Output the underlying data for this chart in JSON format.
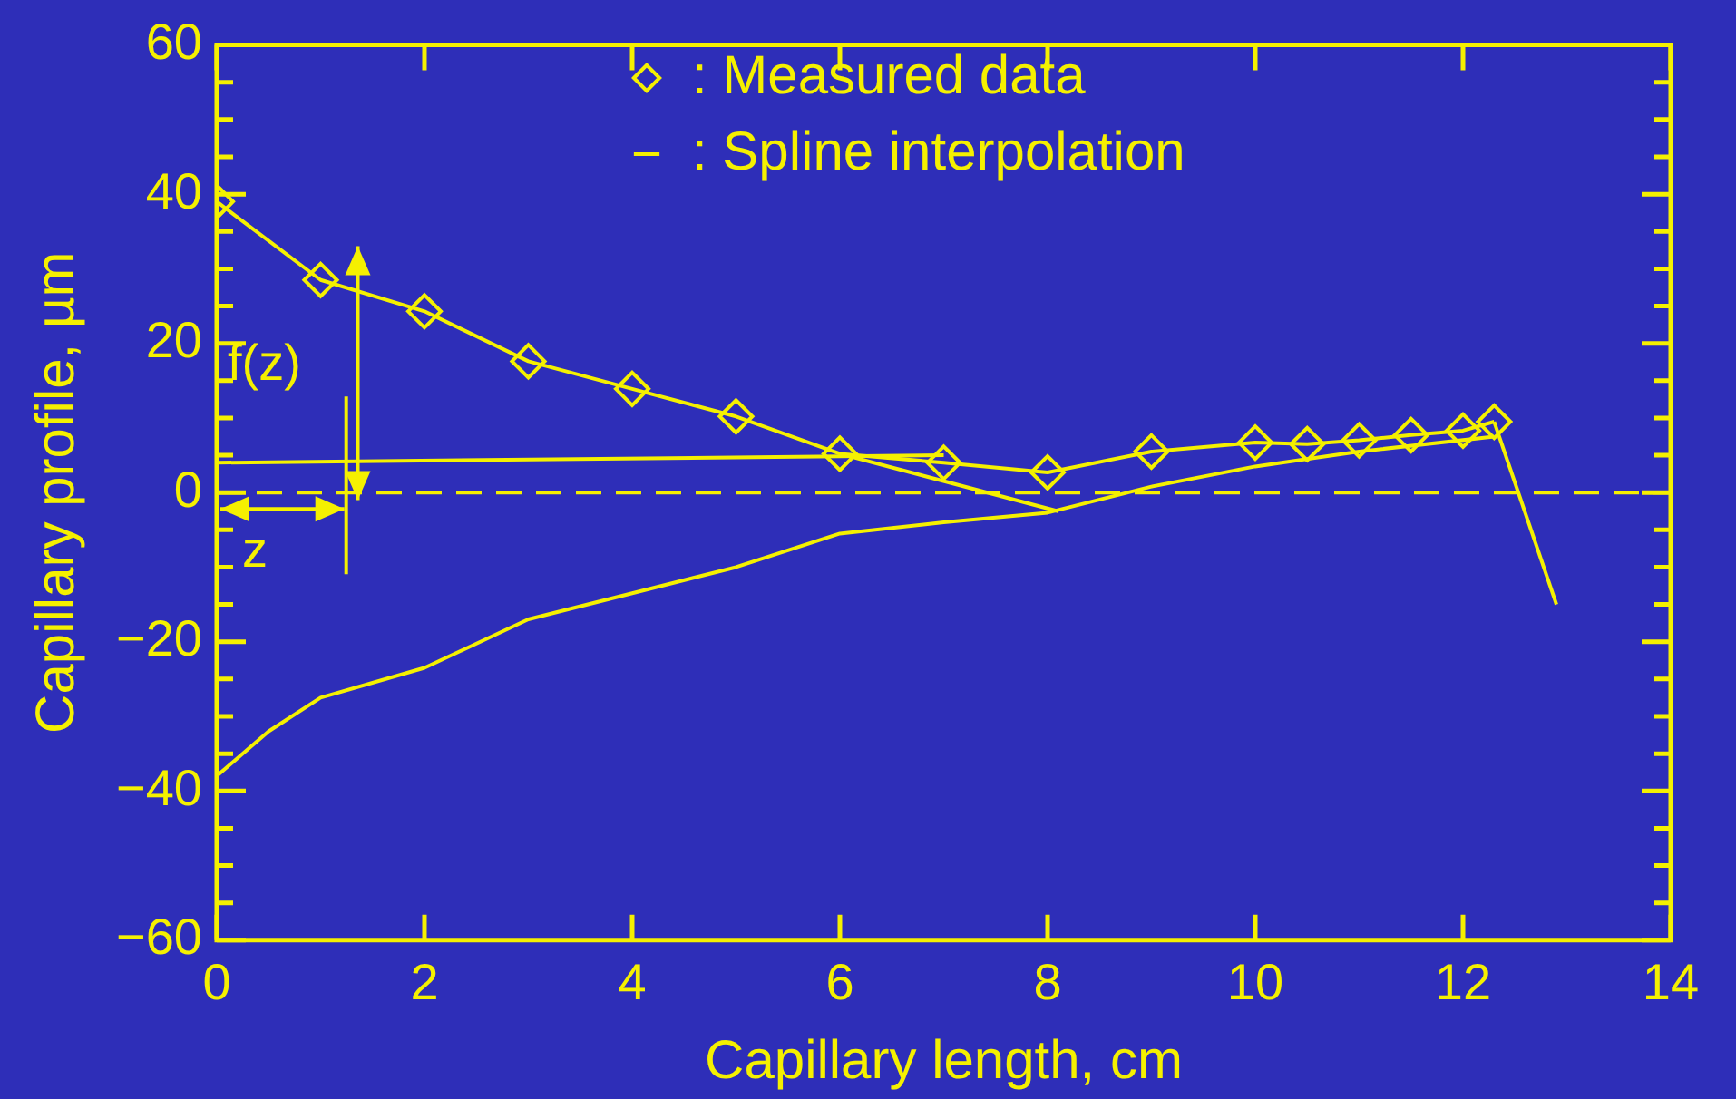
{
  "chart_data": {
    "type": "line",
    "xlabel": "Capillary length, cm",
    "ylabel": "Capillary profile, µm",
    "xlim": [
      0,
      14
    ],
    "xticks": [
      0,
      2,
      4,
      6,
      8,
      10,
      12,
      14
    ],
    "ylim": [
      -60,
      60
    ],
    "yticks": [
      -60,
      -40,
      -20,
      0,
      20,
      40,
      60
    ],
    "grid": false,
    "legend": "top right",
    "series": [
      {
        "name": ": Measured data",
        "color": "#f5f000",
        "marker": "diamond",
        "x": [
          0,
          1,
          2,
          3,
          4,
          5,
          6,
          7,
          8,
          9,
          10,
          10.5,
          11,
          11.5,
          12,
          12.3
        ],
        "values": [
          39,
          28.5,
          24.3,
          17.6,
          13.9,
          10.2,
          5.2,
          4,
          2.7,
          5.5,
          6.7,
          6.5,
          7,
          7.7,
          8.3,
          9.5
        ]
      },
      {
        "name": ": Spline interpolation",
        "color": "#f5f000",
        "marker": "none",
        "x": [
          0,
          0.5,
          1,
          2,
          3,
          4,
          5,
          6,
          7,
          8,
          9,
          10,
          11,
          12.3
        ],
        "values": [
          -38,
          -32,
          -27.5,
          -23.5,
          -17,
          -13.5,
          -10,
          -5.5,
          -4,
          -2.7,
          0.8,
          3.5,
          5.5,
          7.5
        ]
      },
      {
        "color": "#f5f000",
        "marker": "none",
        "x": [
          0,
          7
        ],
        "values": [
          4,
          5
        ]
      },
      {
        "color": "#f5f000",
        "marker": "none",
        "x": [
          6,
          8.1
        ],
        "values": [
          5.2,
          -2.5
        ]
      },
      {
        "color": "#f5f000",
        "marker": "none",
        "x": [
          12.3,
          12.9
        ],
        "values": [
          9.5,
          -15
        ]
      }
    ],
    "ref_lines": [
      {
        "axis": "y",
        "value": 0,
        "line_style": "dashed",
        "color": "#f5f000"
      }
    ],
    "annotations": [
      "f(z)",
      "z"
    ]
  }
}
